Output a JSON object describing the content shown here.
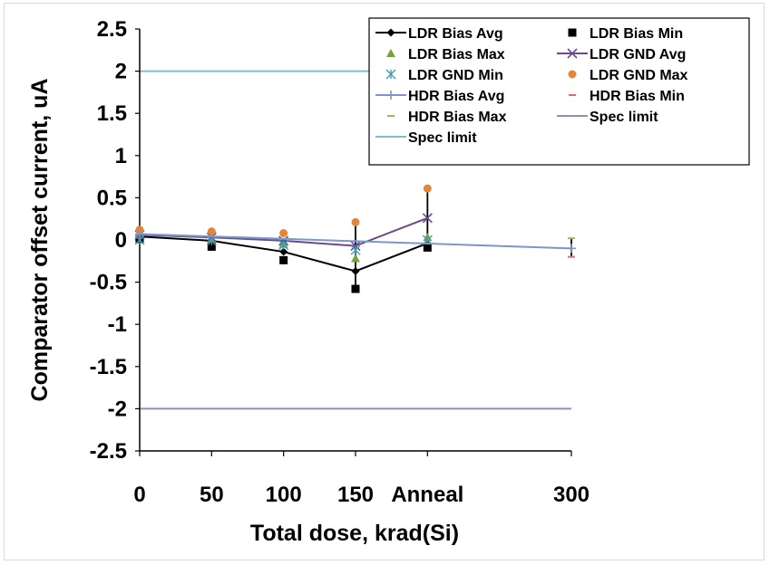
{
  "chart_data": {
    "type": "line",
    "title": "",
    "xlabel": "Total dose, krad(Si)",
    "ylabel": "Comparator offset current, uA",
    "ylim": [
      -2.5,
      2.5
    ],
    "ytick_labels": [
      "2.5",
      "2",
      "1.5",
      "1",
      "0.5",
      "0",
      "-0.5",
      "-1",
      "-1.5",
      "-2",
      "-2.5"
    ],
    "ytick_values": [
      2.5,
      2,
      1.5,
      1,
      0.5,
      0,
      -0.5,
      -1,
      -1.5,
      -2,
      -2.5
    ],
    "x_positions": [
      0,
      50,
      100,
      150,
      200,
      300
    ],
    "categories": [
      "0",
      "50",
      "100",
      "150",
      "Anneal",
      "300"
    ],
    "grid": false,
    "legend_placement": "top-right",
    "series": [
      {
        "name": "LDR Bias Avg",
        "marker": "diamond",
        "line": true,
        "color": "#000000",
        "x": [
          0,
          50,
          100,
          150,
          200
        ],
        "y": [
          0.04,
          -0.01,
          -0.14,
          -0.37,
          -0.04
        ]
      },
      {
        "name": "LDR Bias Min",
        "marker": "square",
        "line": false,
        "color": "#000000",
        "x": [
          0,
          50,
          100,
          150,
          200
        ],
        "y": [
          0.01,
          -0.08,
          -0.24,
          -0.58,
          -0.09
        ]
      },
      {
        "name": "LDR Bias Max",
        "marker": "triangle",
        "line": false,
        "color": "#77a13b",
        "x": [
          0,
          50,
          100,
          150,
          200
        ],
        "y": [
          0.08,
          0.02,
          -0.05,
          -0.22,
          0.03
        ]
      },
      {
        "name": "LDR GND Avg",
        "marker": "x",
        "line": true,
        "color": "#6a4a8c",
        "x": [
          0,
          50,
          100,
          150,
          200
        ],
        "y": [
          0.06,
          0.03,
          -0.01,
          -0.07,
          0.26
        ]
      },
      {
        "name": "LDR GND Min",
        "marker": "star",
        "line": false,
        "color": "#3f9fb5",
        "x": [
          0,
          50,
          100,
          150,
          200
        ],
        "y": [
          0.0,
          -0.01,
          -0.06,
          -0.12,
          0.0
        ]
      },
      {
        "name": "LDR GND Max",
        "marker": "circle",
        "line": false,
        "color": "#e2873a",
        "x": [
          0,
          50,
          100,
          150,
          200
        ],
        "y": [
          0.12,
          0.1,
          0.08,
          0.21,
          0.61
        ]
      },
      {
        "name": "HDR Bias Avg",
        "marker": "plus",
        "line": true,
        "color": "#7b97c9",
        "x": [
          0,
          300
        ],
        "y": [
          0.07,
          -0.1
        ]
      },
      {
        "name": "HDR Bias Min",
        "marker": "dash",
        "line": false,
        "color": "#e46c6c",
        "x": [
          300
        ],
        "y": [
          -0.2
        ]
      },
      {
        "name": "HDR Bias Max",
        "marker": "dash",
        "line": false,
        "color": "#9bbb59",
        "x": [
          300
        ],
        "y": [
          0.02
        ]
      },
      {
        "name": "Spec limit",
        "marker": "none",
        "line": true,
        "color": "#9d88b8",
        "x": [
          0,
          300
        ],
        "y": [
          -2,
          -2
        ]
      },
      {
        "name": "Spec limit",
        "marker": "none",
        "line": true,
        "color": "#7fbcd2",
        "x": [
          0,
          300
        ],
        "y": [
          2,
          2
        ]
      }
    ],
    "error_bars": [
      {
        "x": 150,
        "low": -0.58,
        "high": 0.21
      },
      {
        "x": 200,
        "low": -0.09,
        "high": 0.61
      },
      {
        "x": 300,
        "low": -0.2,
        "high": 0.02
      }
    ]
  }
}
